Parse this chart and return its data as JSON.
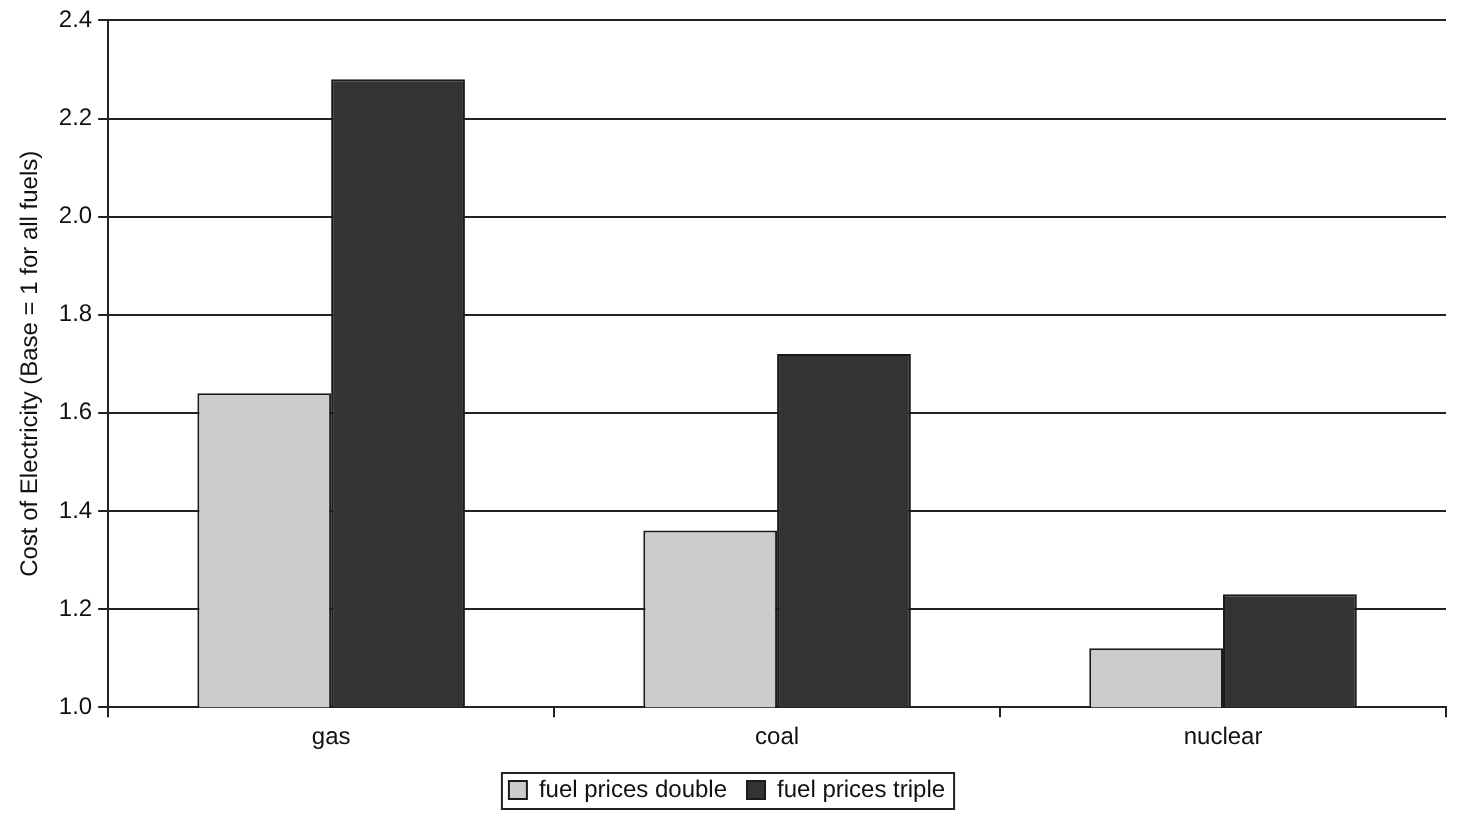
{
  "chart_data": {
    "type": "bar",
    "ylabel": "Cost of Electricity (Base = 1 for all fuels)",
    "categories": [
      "gas",
      "coal",
      "nuclear"
    ],
    "series": [
      {
        "name": "fuel prices double",
        "color": "#cccccc",
        "values": [
          1.64,
          1.36,
          1.12
        ]
      },
      {
        "name": "fuel prices triple",
        "color": "#333333",
        "values": [
          2.28,
          1.72,
          1.23
        ]
      }
    ],
    "ylim": [
      1.0,
      2.4
    ],
    "yticks": [
      {
        "value": 1,
        "label": "1.0"
      },
      1.2,
      1.4,
      1.6,
      1.8,
      {
        "value": 2,
        "label": "2.0"
      },
      2.2,
      2.4
    ],
    "grid": "y",
    "legend": "bottom"
  }
}
